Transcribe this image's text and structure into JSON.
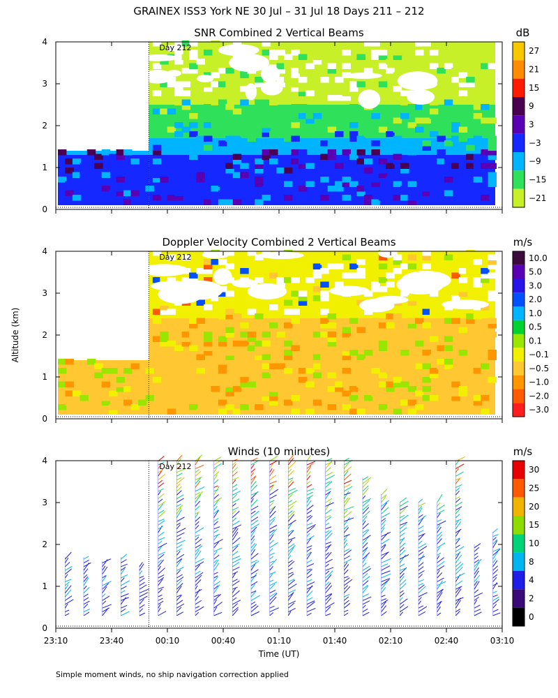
{
  "figure": {
    "title": "GRAINEX ISS3 York NE  30 Jul – 31 Jul 18 Days 211 – 212",
    "ylabel": "Altitude (km)",
    "xlabel": "Time (UT)",
    "footnote": "Simple moment winds, no ship navigation correction applied",
    "day_marker": "Day 212",
    "x_ticks": [
      "23:10",
      "23:40",
      "00:10",
      "00:40",
      "01:10",
      "01:40",
      "02:10",
      "02:40",
      "03:10"
    ],
    "y_ticks": [
      "0",
      "1",
      "2",
      "3",
      "4"
    ]
  },
  "chart_data": [
    {
      "type": "heatmap",
      "title": "SNR Combined 2 Vertical Beams",
      "xlim": [
        "23:10",
        "03:10"
      ],
      "ylim": [
        0,
        4
      ],
      "colorbar": {
        "units": "dB",
        "labels": [
          "27",
          "21",
          "15",
          "9",
          "3",
          "−3",
          "−9",
          "−15",
          "−21"
        ],
        "colors": [
          "#f7c800",
          "#ff8c00",
          "#ff1a00",
          "#4a0050",
          "#5a00b4",
          "#1428ff",
          "#00b4ff",
          "#2ee05a",
          "#c8f028"
        ]
      },
      "data_extent": {
        "before_gap_top_km": 1.4,
        "after_gap_top_km": 4.0,
        "gap_time": "00:00"
      },
      "layers": [
        {
          "from_km": 0.1,
          "to_km": 0.7,
          "value_db": -3
        },
        {
          "from_km": 0.7,
          "to_km": 1.3,
          "value_db": -3
        },
        {
          "from_km": 1.3,
          "to_km": 1.7,
          "value_db": -9
        },
        {
          "from_km": 1.7,
          "to_km": 2.5,
          "value_db": -15
        },
        {
          "from_km": 2.5,
          "to_km": 4.0,
          "value_db": -21
        }
      ]
    },
    {
      "type": "heatmap",
      "title": "Doppler Velocity Combined 2 Vertical Beams",
      "xlim": [
        "23:10",
        "03:10"
      ],
      "ylim": [
        0,
        4
      ],
      "colorbar": {
        "units": "m/s",
        "labels": [
          "10.0",
          "5.0",
          "3.0",
          "2.0",
          "1.0",
          "0.5",
          "0.1",
          "−0.1",
          "−0.5",
          "−1.0",
          "−2.0",
          "−3.0"
        ],
        "colors": [
          "#3c0a3c",
          "#5a00b4",
          "#2814e6",
          "#0050ff",
          "#00b4ff",
          "#00d232",
          "#9be600",
          "#f0f000",
          "#ffc832",
          "#ff9600",
          "#ff5a00",
          "#ff1e1e"
        ]
      },
      "layers": [
        {
          "from_km": 0.1,
          "to_km": 1.4,
          "value_ms": -0.5
        },
        {
          "from_km": 1.4,
          "to_km": 2.4,
          "value_ms": -0.5
        },
        {
          "from_km": 2.4,
          "to_km": 4.0,
          "value_ms": -0.1
        }
      ]
    },
    {
      "type": "scatter",
      "title": "Winds (10 minutes)",
      "xlim": [
        "23:10",
        "03:10"
      ],
      "ylim": [
        0,
        4
      ],
      "colorbar": {
        "units": "m/s",
        "labels": [
          "30",
          "25",
          "20",
          "15",
          "10",
          "8",
          "4",
          "2",
          "0"
        ],
        "colors": [
          "#e60000",
          "#ff5a00",
          "#f0b400",
          "#8cdc00",
          "#00d278",
          "#00b4f0",
          "#1e1ee6",
          "#3c0a78",
          "#000000"
        ]
      },
      "profile_times": [
        "23:15",
        "23:25",
        "23:35",
        "23:45",
        "23:55",
        "00:05",
        "00:15",
        "00:25",
        "00:35",
        "00:45",
        "00:55",
        "01:05",
        "01:15",
        "01:25",
        "01:35",
        "01:45",
        "01:55",
        "02:05",
        "02:15",
        "02:25",
        "02:35",
        "02:45",
        "02:55",
        "03:05"
      ],
      "profile_top_km": [
        1.7,
        1.7,
        1.6,
        1.7,
        1.5,
        4.0,
        4.0,
        4.0,
        4.0,
        4.0,
        4.0,
        4.0,
        4.0,
        4.0,
        4.0,
        4.0,
        3.6,
        3.2,
        3.0,
        3.0,
        3.0,
        4.0,
        2.0,
        2.3
      ]
    }
  ]
}
